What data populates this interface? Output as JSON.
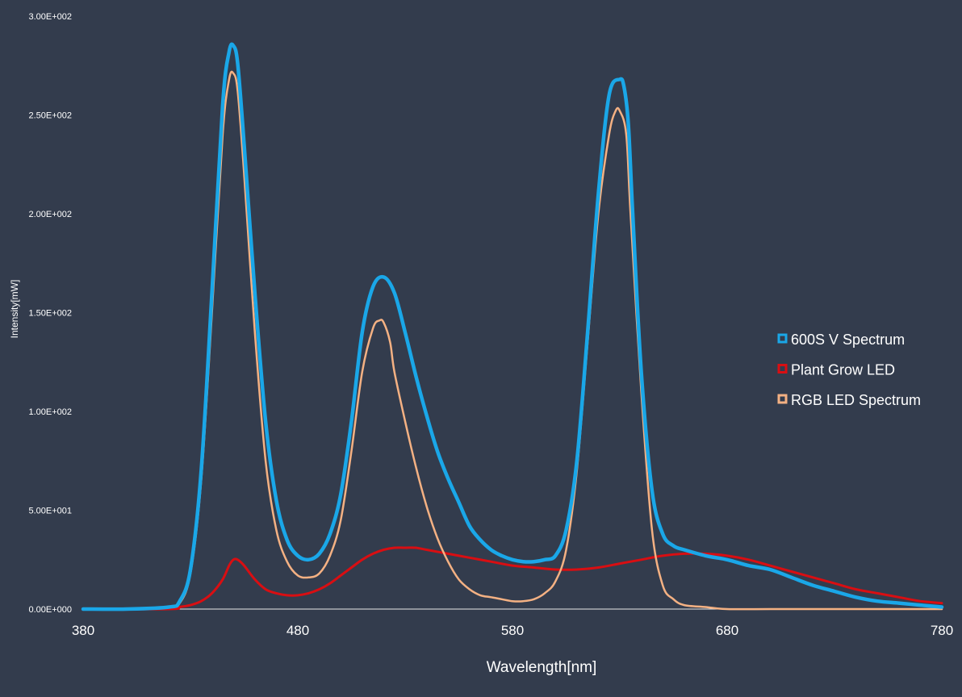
{
  "chart_data": {
    "type": "line",
    "xlabel": "Wavelength[nm]",
    "ylabel": "Intensity[mW]",
    "xlim": [
      380,
      780
    ],
    "ylim": [
      0,
      300
    ],
    "x_ticks": [
      "380",
      "480",
      "580",
      "680",
      "780"
    ],
    "y_ticks": [
      "0.00E+000",
      "5.00E+001",
      "1.00E+002",
      "1.50E+002",
      "2.00E+002",
      "2.50E+002",
      "3.00E+002"
    ],
    "grid": false,
    "legend_position": "right",
    "series": [
      {
        "name": "600S V Spectrum",
        "color": "#1aa7e8",
        "x": [
          380,
          400,
          420,
          425,
          430,
          435,
          440,
          445,
          448,
          450,
          452,
          455,
          460,
          465,
          470,
          475,
          480,
          485,
          490,
          495,
          500,
          505,
          510,
          515,
          520,
          525,
          530,
          535,
          540,
          545,
          550,
          555,
          560,
          565,
          570,
          575,
          580,
          585,
          590,
          595,
          600,
          605,
          610,
          615,
          620,
          625,
          630,
          632,
          634,
          636,
          640,
          645,
          650,
          655,
          660,
          670,
          680,
          690,
          700,
          710,
          720,
          730,
          740,
          750,
          760,
          770,
          780
        ],
        "y": [
          0,
          0,
          1,
          4,
          20,
          70,
          160,
          255,
          282,
          285,
          276,
          235,
          160,
          95,
          55,
          35,
          27,
          25,
          28,
          38,
          58,
          95,
          140,
          163,
          168,
          160,
          140,
          118,
          98,
          80,
          66,
          54,
          42,
          35,
          30,
          27,
          25,
          24,
          24,
          25,
          27,
          40,
          75,
          140,
          210,
          260,
          268,
          264,
          245,
          200,
          120,
          60,
          38,
          32,
          30,
          27,
          25,
          22,
          20,
          16,
          12,
          9,
          6,
          4,
          3,
          2,
          1
        ]
      },
      {
        "name": "Plant Grow LED",
        "color": "#d90e12",
        "x": [
          380,
          420,
          425,
          430,
          435,
          440,
          445,
          448,
          450,
          452,
          455,
          460,
          465,
          470,
          475,
          480,
          485,
          490,
          495,
          500,
          505,
          510,
          515,
          520,
          525,
          530,
          535,
          540,
          550,
          560,
          570,
          580,
          590,
          600,
          610,
          620,
          630,
          640,
          650,
          660,
          670,
          680,
          690,
          700,
          710,
          720,
          730,
          740,
          750,
          760,
          770,
          780
        ],
        "y": [
          0,
          0,
          1,
          2,
          4,
          8,
          15,
          22,
          25,
          25,
          22,
          15,
          10,
          8,
          7,
          7,
          8,
          10,
          13,
          17,
          21,
          25,
          28,
          30,
          31,
          31,
          31,
          30,
          28,
          26,
          24,
          22,
          21,
          20,
          20,
          21,
          23,
          25,
          27,
          28,
          28,
          27,
          25,
          22,
          19,
          16,
          13,
          10,
          8,
          6,
          4,
          3
        ]
      },
      {
        "name": "RGB LED Spectrum",
        "color": "#f4b183",
        "x": [
          380,
          400,
          420,
          425,
          430,
          435,
          440,
          445,
          448,
          450,
          452,
          455,
          460,
          465,
          470,
          475,
          480,
          485,
          490,
          495,
          500,
          505,
          510,
          515,
          518,
          520,
          523,
          525,
          530,
          535,
          540,
          545,
          550,
          555,
          560,
          565,
          570,
          575,
          580,
          585,
          590,
          595,
          600,
          605,
          610,
          615,
          620,
          625,
          628,
          630,
          633,
          635,
          640,
          645,
          650,
          655,
          660,
          670,
          680,
          700,
          720,
          740,
          760,
          780
        ],
        "y": [
          0,
          0,
          1,
          3,
          18,
          65,
          150,
          240,
          268,
          271,
          262,
          220,
          140,
          75,
          40,
          24,
          17,
          16,
          18,
          27,
          45,
          80,
          120,
          142,
          146,
          145,
          135,
          120,
          95,
          72,
          52,
          36,
          24,
          15,
          10,
          7,
          6,
          5,
          4,
          4,
          5,
          8,
          14,
          30,
          70,
          135,
          200,
          240,
          252,
          252,
          240,
          200,
          110,
          40,
          12,
          5,
          2,
          1,
          0,
          0,
          0,
          0,
          0,
          0
        ]
      }
    ]
  }
}
